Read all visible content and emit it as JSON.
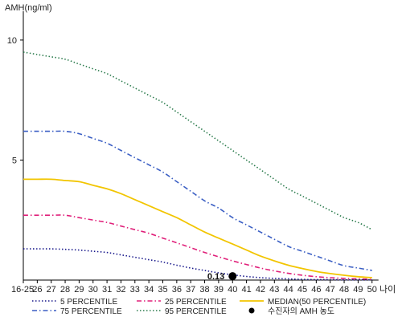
{
  "chart_data": {
    "type": "line",
    "ylabel": "AMH(ng/ml)",
    "xlabel": "나이",
    "categories": [
      "16-25",
      "26",
      "27",
      "28",
      "29",
      "30",
      "31",
      "32",
      "33",
      "34",
      "35",
      "36",
      "37",
      "38",
      "39",
      "40",
      "41",
      "42",
      "43",
      "44",
      "45",
      "46",
      "47",
      "48",
      "49",
      "50"
    ],
    "y_ticks": [
      "10",
      "5"
    ],
    "y_tick_values": [
      10,
      5
    ],
    "ylim": [
      0,
      11
    ],
    "series": [
      {
        "name": "95 PERCENTILE",
        "color": "#2e7d4f",
        "dash": "dotted",
        "values": [
          9.5,
          9.4,
          9.3,
          9.2,
          9.0,
          8.8,
          8.6,
          8.3,
          8.0,
          7.7,
          7.4,
          7.0,
          6.6,
          6.2,
          5.8,
          5.4,
          5.0,
          4.6,
          4.2,
          3.8,
          3.5,
          3.2,
          2.9,
          2.6,
          2.4,
          2.1
        ]
      },
      {
        "name": "75 PERCENTILE",
        "color": "#3b5fc4",
        "dash": "dashdot",
        "values": [
          6.2,
          6.2,
          6.2,
          6.2,
          6.1,
          5.9,
          5.7,
          5.4,
          5.1,
          4.8,
          4.5,
          4.1,
          3.7,
          3.3,
          3.0,
          2.6,
          2.3,
          2.0,
          1.7,
          1.4,
          1.2,
          1.0,
          0.8,
          0.6,
          0.5,
          0.4
        ]
      },
      {
        "name": "MEDIAN(50 PERCENTILE)",
        "color": "#f2c500",
        "dash": "solid",
        "values": [
          4.2,
          4.2,
          4.2,
          4.15,
          4.1,
          3.95,
          3.8,
          3.6,
          3.35,
          3.1,
          2.85,
          2.6,
          2.3,
          2.0,
          1.75,
          1.5,
          1.25,
          1.0,
          0.8,
          0.62,
          0.48,
          0.36,
          0.27,
          0.2,
          0.14,
          0.1
        ]
      },
      {
        "name": "25 PERCENTILE",
        "color": "#e0207a",
        "dash": "dashdot",
        "values": [
          2.7,
          2.7,
          2.7,
          2.7,
          2.6,
          2.5,
          2.4,
          2.25,
          2.1,
          1.95,
          1.75,
          1.55,
          1.35,
          1.15,
          0.97,
          0.8,
          0.65,
          0.5,
          0.38,
          0.28,
          0.2,
          0.14,
          0.1,
          0.07,
          0.05,
          0.03
        ]
      },
      {
        "name": "5 PERCENTILE",
        "color": "#1a1a8c",
        "dash": "dotted",
        "values": [
          1.3,
          1.3,
          1.3,
          1.28,
          1.25,
          1.2,
          1.15,
          1.05,
          0.95,
          0.85,
          0.75,
          0.62,
          0.5,
          0.4,
          0.3,
          0.22,
          0.15,
          0.1,
          0.07,
          0.05,
          0.03,
          0.02,
          0.02,
          0.01,
          0.01,
          0.01
        ]
      }
    ],
    "marker": {
      "name": "수진자의 AMH 농도",
      "category": "40",
      "value": 0.13,
      "label": "0.13",
      "color": "#000000"
    },
    "legend": {
      "position": "bottom",
      "items": [
        {
          "name": "5 PERCENTILE",
          "color": "#1a1a8c",
          "dash": "dotted"
        },
        {
          "name": "25 PERCENTILE",
          "color": "#e0207a",
          "dash": "dashdot"
        },
        {
          "name": "MEDIAN(50 PERCENTILE)",
          "color": "#f2c500",
          "dash": "solid"
        },
        {
          "name": "75 PERCENTILE",
          "color": "#3b5fc4",
          "dash": "dashdot"
        },
        {
          "name": "95 PERCENTILE",
          "color": "#2e7d4f",
          "dash": "dotted"
        },
        {
          "name": "수진자의 AMH 농도",
          "color": "#000000",
          "dash": "marker"
        }
      ]
    },
    "grid": false
  }
}
